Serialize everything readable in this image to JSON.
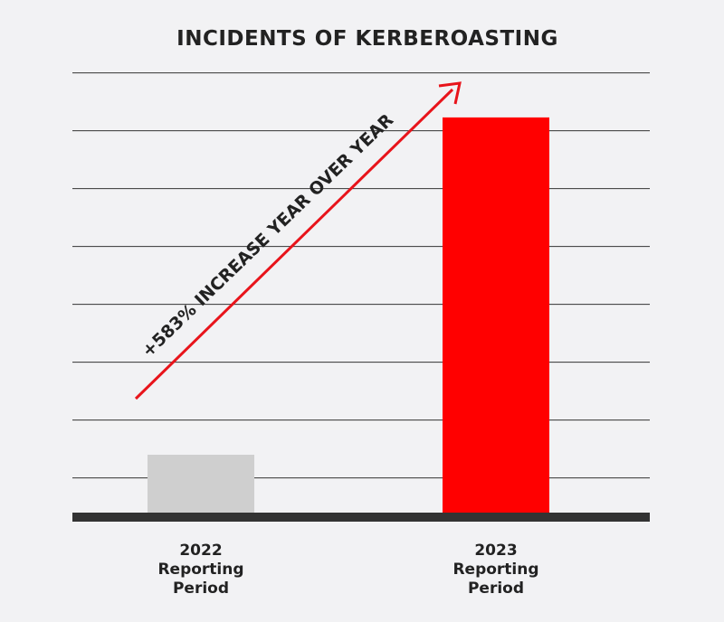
{
  "chart_data": {
    "type": "bar",
    "title": "INCIDENTS OF KERBEROASTING",
    "xlabel": "",
    "ylabel": "",
    "categories": [
      [
        "2022",
        "Reporting",
        "Period"
      ],
      [
        "2023",
        "Reporting",
        "Period"
      ]
    ],
    "values": [
      1,
      6.83
    ],
    "ylim": [
      0,
      9.5
    ],
    "grid": true,
    "y_tick_labels_visible": false,
    "annotation": "+583% INCREASE YEAR OVER YEAR",
    "colors": {
      "bars": [
        "#cfcfcf",
        "#ff0000"
      ],
      "arrow": "#e8141b",
      "baseline": "#333333",
      "grid": "#333333",
      "text": "#222222",
      "background": "#f2f2f4"
    }
  }
}
